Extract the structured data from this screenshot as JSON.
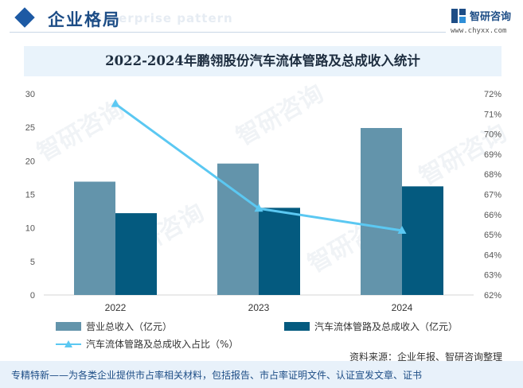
{
  "header": {
    "section_title": "企业格局",
    "section_subtitle": "Enterprise pattern",
    "brand_name": "智研咨询",
    "brand_url": "www.chyxx.com"
  },
  "watermark": "智研咨询",
  "colors": {
    "revenue": "#6394ab",
    "pipe_revenue": "#045a7f",
    "ratio_line": "#5bc8f2",
    "accent": "#1d4d86"
  },
  "chart_data": {
    "type": "bar",
    "title": "2022-2024年鹏翎股份汽车流体管路及总成收入统计",
    "categories": [
      "2022",
      "2023",
      "2024"
    ],
    "series": [
      {
        "name": "营业总收入（亿元）",
        "kind": "bar",
        "axis": "left",
        "values": [
          16.9,
          19.6,
          24.9
        ]
      },
      {
        "name": "汽车流体管路及总成收入（亿元）",
        "kind": "bar",
        "axis": "left",
        "values": [
          12.2,
          13.0,
          16.2
        ]
      },
      {
        "name": "汽车流体管路及总成收入占比（%）",
        "kind": "line",
        "axis": "right",
        "marker": "triangle",
        "values": [
          71.5,
          66.3,
          65.2
        ]
      }
    ],
    "y_left": {
      "min": 0,
      "max": 30,
      "ticks": [
        "0",
        "5",
        "10",
        "15",
        "20",
        "25",
        "30"
      ]
    },
    "y_right": {
      "min": 62,
      "max": 72,
      "ticks": [
        "62%",
        "63%",
        "64%",
        "65%",
        "66%",
        "67%",
        "68%",
        "69%",
        "70%",
        "71%",
        "72%"
      ]
    },
    "grid": false,
    "legend_position": "bottom"
  },
  "legend": {
    "revenue": "营业总收入（亿元）",
    "pipe_revenue": "汽车流体管路及总成收入（亿元）",
    "ratio": "汽车流体管路及总成收入占比（%）"
  },
  "source": "资料来源：企业年报、智研咨询整理",
  "footer": "专精特新——为各类企业提供市占率相关材料，包括报告、市占率证明文件、认证宣发文章、证书"
}
